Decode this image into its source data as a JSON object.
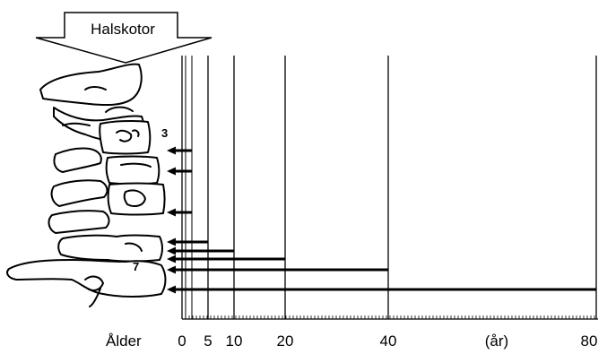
{
  "header": {
    "label": "Halskotor"
  },
  "vertebra_labels": [
    {
      "text": "3"
    },
    {
      "text": "7"
    }
  ],
  "axis": {
    "label": "Ålder",
    "unit": "(år)",
    "ticks": [
      {
        "value": 0,
        "label": "0"
      },
      {
        "value": 5,
        "label": "5"
      },
      {
        "value": 10,
        "label": "10"
      },
      {
        "value": 20,
        "label": "20"
      },
      {
        "value": 40,
        "label": "40"
      },
      {
        "value": 80,
        "label": "80"
      }
    ]
  },
  "arrows": [
    {
      "vertebra_level": 3,
      "age": 0
    },
    {
      "vertebra_level": 4,
      "age": 0
    },
    {
      "vertebra_level": 5,
      "age": 0
    },
    {
      "vertebra_level": 6,
      "age": 5
    },
    {
      "vertebra_level": 6,
      "age": 10
    },
    {
      "vertebra_level": 6,
      "age": 20
    },
    {
      "vertebra_level": 7,
      "age": 40
    },
    {
      "vertebra_level": 7,
      "age": 80
    }
  ],
  "colors": {
    "ink": "#000000",
    "background": "#ffffff"
  }
}
